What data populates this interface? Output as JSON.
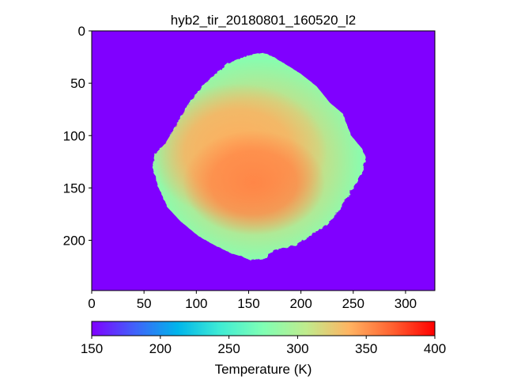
{
  "chart_data": {
    "type": "heatmap",
    "title": "hyb2_tir_20180801_160520_l2",
    "image_size": [
      328,
      248
    ],
    "xlim": [
      0,
      328
    ],
    "ylim": [
      248,
      0
    ],
    "x_ticks": [
      0,
      50,
      100,
      150,
      200,
      250,
      300
    ],
    "y_ticks": [
      0,
      50,
      100,
      150,
      200
    ],
    "x_tick_labels": [
      "0",
      "50",
      "100",
      "150",
      "200",
      "250",
      "300"
    ],
    "y_tick_labels": [
      "0",
      "50",
      "100",
      "150",
      "200"
    ],
    "background_temperature_K": 150,
    "colormap": "rainbow",
    "colormap_stops": [
      "#8000ff",
      "#4062fa",
      "#00b5eb",
      "#40ecd4",
      "#80ffb4",
      "#c0eb8d",
      "#ffb462",
      "#ff6231",
      "#ff0000"
    ],
    "object_outline_pixels": [
      [
        152,
        219
      ],
      [
        160,
        218
      ],
      [
        167,
        218
      ],
      [
        170,
        212
      ],
      [
        178,
        208
      ],
      [
        195,
        205
      ],
      [
        203,
        199
      ],
      [
        210,
        195
      ],
      [
        225,
        185
      ],
      [
        235,
        173
      ],
      [
        245,
        158
      ],
      [
        252,
        146
      ],
      [
        258,
        135
      ],
      [
        262,
        121
      ],
      [
        258,
        112
      ],
      [
        248,
        100
      ],
      [
        243,
        87
      ],
      [
        240,
        79
      ],
      [
        228,
        69
      ],
      [
        215,
        53
      ],
      [
        200,
        41
      ],
      [
        187,
        33
      ],
      [
        174,
        25
      ],
      [
        164,
        21
      ],
      [
        152,
        23
      ],
      [
        130,
        31
      ],
      [
        110,
        48
      ],
      [
        100,
        60
      ],
      [
        90,
        74
      ],
      [
        78,
        95
      ],
      [
        70,
        108
      ],
      [
        60,
        118
      ],
      [
        58,
        130
      ],
      [
        64,
        150
      ],
      [
        72,
        168
      ],
      [
        85,
        182
      ],
      [
        102,
        196
      ],
      [
        118,
        205
      ],
      [
        132,
        212
      ],
      [
        145,
        216
      ]
    ],
    "temperature_regions_K": [
      {
        "center": [
          155,
          145
        ],
        "radii": [
          68,
          50
        ],
        "temperature": 355
      },
      {
        "center": [
          140,
          115
        ],
        "radii": [
          85,
          65
        ],
        "temperature": 340
      },
      {
        "center": [
          158,
          123
        ],
        "radii": [
          100,
          95
        ],
        "temperature": 320
      }
    ],
    "limb_temperature_K": 280,
    "colorbar": {
      "label": "Temperature (K)",
      "range": [
        150,
        400
      ],
      "ticks": [
        150,
        200,
        250,
        300,
        350,
        400
      ],
      "tick_labels": [
        "150",
        "200",
        "250",
        "300",
        "350",
        "400"
      ]
    }
  }
}
